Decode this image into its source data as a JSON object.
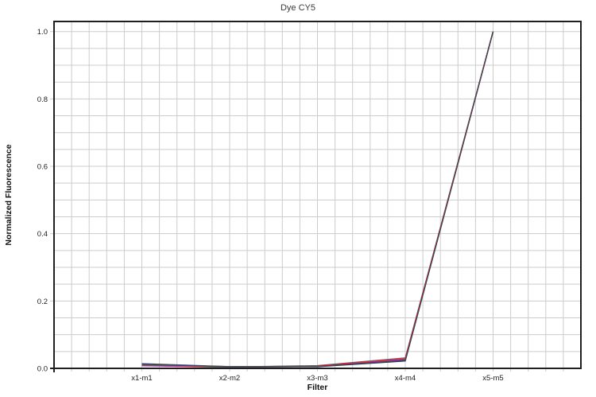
{
  "chart_data": {
    "type": "line",
    "title": "Dye CY5",
    "xlabel": "Filter",
    "ylabel": "Normalized Fluorescence",
    "x_axis": {
      "categories": [
        "x1-m1",
        "x2-m2",
        "x3-m3",
        "x4-m4",
        "x5-m5"
      ],
      "category_positions": [
        5,
        10,
        15,
        20,
        25
      ],
      "minor_divisions": 30
    },
    "y_axis": {
      "min": 0,
      "max": 1.0,
      "ticks": [
        "0.0",
        "0.2",
        "0.4",
        "0.6",
        "0.8",
        "1.0"
      ],
      "minor_step": 0.05,
      "plot_top_value": 1.03
    },
    "grid": true,
    "legend": "none",
    "series": [
      {
        "color": "#3a4ab8",
        "values": [
          0.014,
          0.005,
          0.006,
          0.026,
          1.0
        ]
      },
      {
        "color": "#24324f",
        "values": [
          0.011,
          0.004,
          0.005,
          0.022,
          1.0
        ]
      },
      {
        "color": "#3f7a44",
        "values": [
          0.01,
          0.004,
          0.007,
          0.024,
          1.0
        ]
      },
      {
        "color": "#a03b9e",
        "values": [
          0.008,
          0.003,
          0.006,
          0.028,
          1.0
        ]
      },
      {
        "color": "#c2384a",
        "values": [
          0.01,
          0.004,
          0.008,
          0.031,
          1.0
        ]
      },
      {
        "color": "#44474f",
        "values": [
          0.012,
          0.005,
          0.006,
          0.024,
          1.0
        ]
      }
    ],
    "style": {
      "grid_color": "#cccccc",
      "axis_color": "#1f1f1f",
      "text_color": "#222222"
    }
  }
}
